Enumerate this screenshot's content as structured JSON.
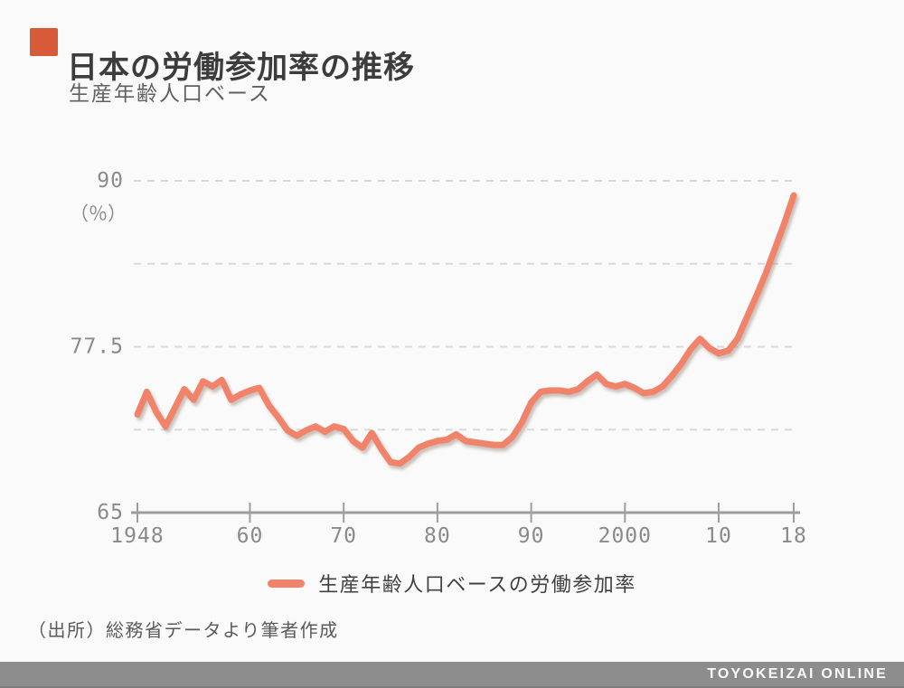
{
  "page": {
    "background": "#fafafa",
    "accent_color": "#d75b38"
  },
  "chart_data": {
    "type": "line",
    "title": "日本の労働参加率の推移",
    "subtitle": "生産年齢人口ベース",
    "unit_label": "（％）",
    "xlabel": "",
    "ylabel": "",
    "xlim": [
      1948,
      2018
    ],
    "ylim": [
      65,
      90
    ],
    "grid": "horizontal-dashed",
    "legend_position": "bottom-center",
    "x_ticks": [
      {
        "value": 1948,
        "label": "1948"
      },
      {
        "value": 1960,
        "label": "60"
      },
      {
        "value": 1970,
        "label": "70"
      },
      {
        "value": 1980,
        "label": "80"
      },
      {
        "value": 1990,
        "label": "90"
      },
      {
        "value": 2000,
        "label": "2000"
      },
      {
        "value": 2010,
        "label": "10"
      },
      {
        "value": 2018,
        "label": "18"
      }
    ],
    "y_ticks_labeled": [
      {
        "value": 90,
        "label": "90"
      },
      {
        "value": 77.5,
        "label": "77.5"
      },
      {
        "value": 65,
        "label": "65"
      }
    ],
    "y_gridlines": [
      90,
      83.75,
      77.5,
      71.25
    ],
    "x": [
      1948,
      1949,
      1950,
      1951,
      1952,
      1953,
      1954,
      1955,
      1956,
      1957,
      1958,
      1959,
      1960,
      1961,
      1962,
      1963,
      1964,
      1965,
      1966,
      1967,
      1968,
      1969,
      1970,
      1971,
      1972,
      1973,
      1974,
      1975,
      1976,
      1977,
      1978,
      1979,
      1980,
      1981,
      1982,
      1983,
      1984,
      1985,
      1986,
      1987,
      1988,
      1989,
      1990,
      1991,
      1992,
      1993,
      1994,
      1995,
      1996,
      1997,
      1998,
      1999,
      2000,
      2001,
      2002,
      2003,
      2004,
      2005,
      2006,
      2007,
      2008,
      2009,
      2010,
      2011,
      2012,
      2013,
      2014,
      2015,
      2016,
      2017,
      2018
    ],
    "series": [
      {
        "name": "生産年齢人口ベースの労働参加率",
        "color": "#f0836b",
        "values": [
          72.4,
          74.1,
          72.6,
          71.5,
          72.9,
          74.3,
          73.5,
          74.9,
          74.5,
          75.0,
          73.5,
          73.9,
          74.2,
          74.4,
          73.1,
          72.2,
          71.2,
          70.8,
          71.2,
          71.5,
          71.1,
          71.5,
          71.3,
          70.4,
          69.9,
          71.0,
          69.8,
          68.8,
          68.7,
          69.2,
          69.9,
          70.2,
          70.4,
          70.5,
          70.9,
          70.4,
          70.3,
          70.2,
          70.1,
          70.1,
          70.7,
          71.8,
          73.3,
          74.1,
          74.2,
          74.2,
          74.1,
          74.3,
          74.9,
          75.4,
          74.7,
          74.5,
          74.7,
          74.4,
          74.0,
          74.1,
          74.5,
          75.3,
          76.2,
          77.3,
          78.1,
          77.4,
          77.0,
          77.2,
          78.1,
          79.7,
          81.3,
          83.0,
          84.9,
          86.8,
          88.9
        ]
      }
    ]
  },
  "source": {
    "text": "（出所）総務省データより筆者作成"
  },
  "footer": {
    "brand": "TOYOKEIZAI ONLINE",
    "background": "#8d8d8d"
  }
}
